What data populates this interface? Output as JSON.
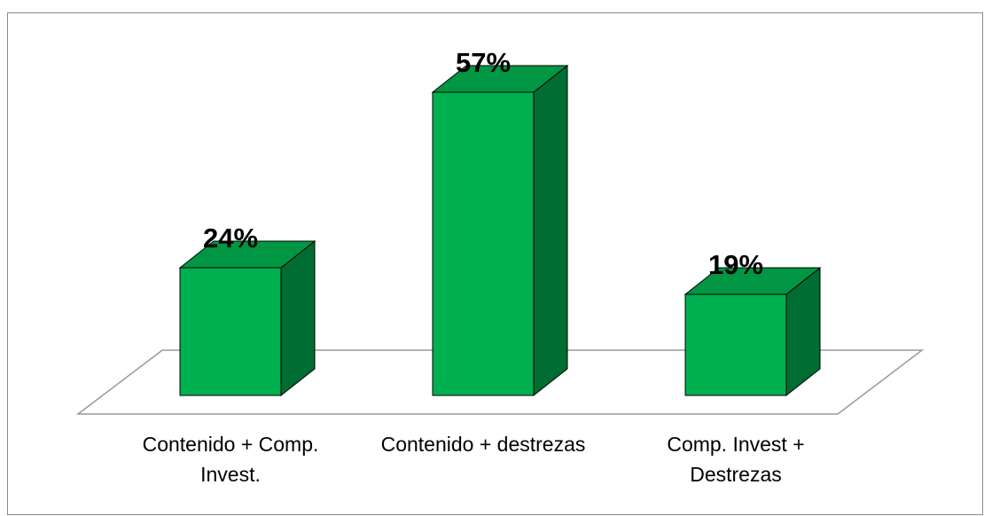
{
  "chart_data": {
    "type": "bar",
    "categories": [
      "Contenido + Comp. Invest.",
      "Contenido + destrezas",
      "Comp. Invest + Destrezas"
    ],
    "values": [
      24,
      57,
      19
    ],
    "value_labels": [
      "24%",
      "57%",
      "19%"
    ],
    "color": "#00b050"
  }
}
